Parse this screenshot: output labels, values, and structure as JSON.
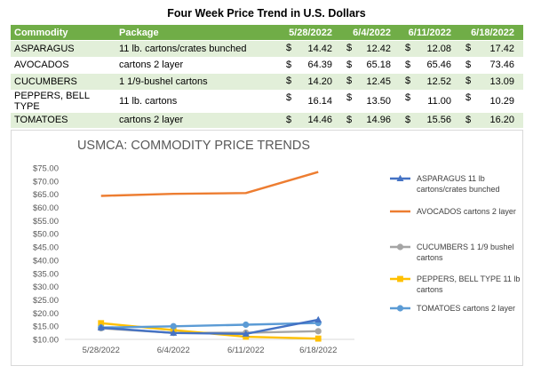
{
  "page": {
    "title": "Four Week Price Trend in U.S. Dollars"
  },
  "table": {
    "headers": [
      "Commodity",
      "Package",
      "5/28/2022",
      "6/4/2022",
      "6/11/2022",
      "6/18/2022"
    ],
    "currency": "$",
    "rows": [
      {
        "commodity": "ASPARAGUS",
        "package": "11 lb. cartons/crates bunched",
        "prices": [
          "14.42",
          "12.42",
          "12.08",
          "17.42"
        ]
      },
      {
        "commodity": "AVOCADOS",
        "package": "cartons 2 layer",
        "prices": [
          "64.39",
          "65.18",
          "65.46",
          "73.46"
        ]
      },
      {
        "commodity": "CUCUMBERS",
        "package": "1 1/9-bushel cartons",
        "prices": [
          "14.20",
          "12.45",
          "12.52",
          "13.09"
        ]
      },
      {
        "commodity": "PEPPERS, BELL TYPE",
        "package": "11 lb. cartons",
        "prices": [
          "16.14",
          "13.50",
          "11.00",
          "10.29"
        ]
      },
      {
        "commodity": "TOMATOES",
        "package": "cartons 2 layer",
        "prices": [
          "14.46",
          "14.96",
          "15.56",
          "16.20"
        ]
      }
    ]
  },
  "chart_data": {
    "type": "line",
    "title": "USMCA: COMMODITY PRICE TRENDS",
    "xlabel": "",
    "ylabel": "",
    "categories": [
      "5/28/2022",
      "6/4/2022",
      "6/11/2022",
      "6/18/2022"
    ],
    "ylim": [
      10,
      75
    ],
    "yticks": [
      10,
      15,
      20,
      25,
      30,
      35,
      40,
      45,
      50,
      55,
      60,
      65,
      70,
      75
    ],
    "ytick_labels": [
      "$10.00",
      "$15.00",
      "$20.00",
      "$25.00",
      "$30.00",
      "$35.00",
      "$40.00",
      "$45.00",
      "$50.00",
      "$55.00",
      "$60.00",
      "$65.00",
      "$70.00",
      "$75.00"
    ],
    "grid": false,
    "legend_position": "right",
    "series": [
      {
        "name": "ASPARAGUS 11 lb cartons/crates bunched",
        "legend_lines": [
          "ASPARAGUS 11 lb",
          "cartons/crates bunched"
        ],
        "color": "#4472c4",
        "marker": "triangle",
        "values": [
          14.42,
          12.42,
          12.08,
          17.42
        ]
      },
      {
        "name": "AVOCADOS cartons 2 layer",
        "legend_lines": [
          "AVOCADOS cartons 2 layer"
        ],
        "color": "#ed7d31",
        "marker": "none",
        "values": [
          64.39,
          65.18,
          65.46,
          73.46
        ]
      },
      {
        "name": "CUCUMBERS 1 1/9 bushel cartons",
        "legend_lines": [
          "CUCUMBERS 1 1/9 bushel",
          "cartons"
        ],
        "color": "#a5a5a5",
        "marker": "circle",
        "values": [
          14.2,
          12.45,
          12.52,
          13.09
        ]
      },
      {
        "name": "PEPPERS, BELL TYPE 11 lb cartons",
        "legend_lines": [
          "PEPPERS, BELL TYPE 11 lb",
          "cartons"
        ],
        "color": "#ffc000",
        "marker": "square",
        "values": [
          16.14,
          13.5,
          11.0,
          10.29
        ]
      },
      {
        "name": "TOMATOES cartons 2 layer",
        "legend_lines": [
          "TOMATOES cartons 2 layer"
        ],
        "color": "#5b9bd5",
        "marker": "circle",
        "values": [
          14.46,
          14.96,
          15.56,
          16.2
        ]
      }
    ]
  }
}
